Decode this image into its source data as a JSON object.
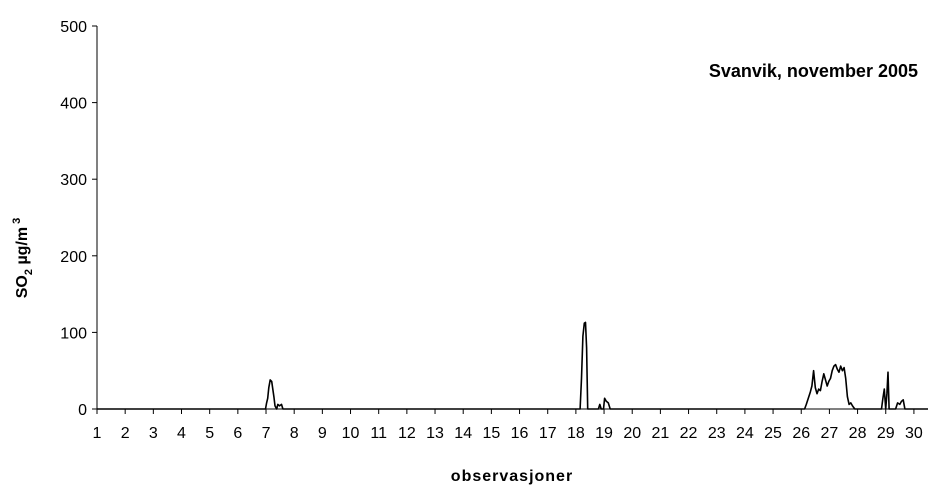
{
  "chart_data": {
    "type": "line",
    "title": "Svanvik, november 2005",
    "xlabel": "observasjoner",
    "ylabel": "SO2 µg/m3",
    "ylabel_parts": {
      "main": "SO",
      "sub": "2",
      "unit": " µg/m",
      "sup": "3"
    },
    "xlim": [
      1,
      30.5
    ],
    "ylim": [
      0,
      500
    ],
    "grid": false,
    "legend": "none",
    "x_ticks": [
      1,
      2,
      3,
      4,
      5,
      6,
      7,
      8,
      9,
      10,
      11,
      12,
      13,
      14,
      15,
      16,
      17,
      18,
      19,
      20,
      21,
      22,
      23,
      24,
      25,
      26,
      27,
      28,
      29,
      30
    ],
    "y_ticks": [
      0,
      100,
      200,
      300,
      400,
      500
    ],
    "series": [
      {
        "color": "#000000",
        "points": [
          [
            1,
            0
          ],
          [
            6.98,
            0
          ],
          [
            7.02,
            8
          ],
          [
            7.06,
            14
          ],
          [
            7.1,
            28
          ],
          [
            7.15,
            38
          ],
          [
            7.2,
            36
          ],
          [
            7.24,
            26
          ],
          [
            7.28,
            16
          ],
          [
            7.32,
            4
          ],
          [
            7.38,
            0
          ],
          [
            7.42,
            6
          ],
          [
            7.48,
            4
          ],
          [
            7.55,
            6
          ],
          [
            7.6,
            0
          ],
          [
            18.15,
            0
          ],
          [
            18.2,
            40
          ],
          [
            18.25,
            95
          ],
          [
            18.3,
            112
          ],
          [
            18.34,
            113
          ],
          [
            18.38,
            80
          ],
          [
            18.42,
            0
          ],
          [
            18.8,
            0
          ],
          [
            18.85,
            6
          ],
          [
            18.9,
            0
          ],
          [
            18.98,
            0
          ],
          [
            19.02,
            14
          ],
          [
            19.08,
            10
          ],
          [
            19.15,
            8
          ],
          [
            19.22,
            0
          ],
          [
            26.12,
            0
          ],
          [
            26.18,
            6
          ],
          [
            26.25,
            14
          ],
          [
            26.32,
            22
          ],
          [
            26.38,
            30
          ],
          [
            26.44,
            50
          ],
          [
            26.5,
            28
          ],
          [
            26.56,
            20
          ],
          [
            26.62,
            26
          ],
          [
            26.68,
            24
          ],
          [
            26.74,
            36
          ],
          [
            26.8,
            46
          ],
          [
            26.86,
            38
          ],
          [
            26.92,
            30
          ],
          [
            26.98,
            36
          ],
          [
            27.04,
            40
          ],
          [
            27.1,
            50
          ],
          [
            27.16,
            56
          ],
          [
            27.22,
            58
          ],
          [
            27.28,
            52
          ],
          [
            27.34,
            48
          ],
          [
            27.4,
            56
          ],
          [
            27.46,
            50
          ],
          [
            27.52,
            54
          ],
          [
            27.58,
            40
          ],
          [
            27.64,
            16
          ],
          [
            27.7,
            6
          ],
          [
            27.76,
            8
          ],
          [
            27.82,
            4
          ],
          [
            27.9,
            0
          ],
          [
            28.85,
            0
          ],
          [
            28.9,
            14
          ],
          [
            28.95,
            26
          ],
          [
            29.0,
            0
          ],
          [
            29.04,
            20
          ],
          [
            29.08,
            48
          ],
          [
            29.12,
            0
          ],
          [
            29.35,
            0
          ],
          [
            29.42,
            8
          ],
          [
            29.5,
            6
          ],
          [
            29.56,
            10
          ],
          [
            29.62,
            12
          ],
          [
            29.68,
            0
          ],
          [
            30.5,
            0
          ]
        ]
      }
    ]
  }
}
